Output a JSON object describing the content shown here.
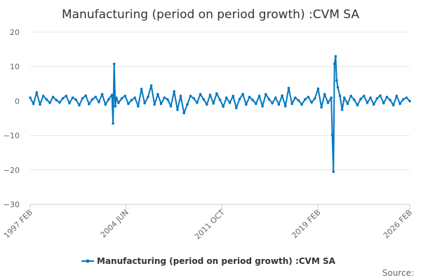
{
  "chart_data": {
    "type": "line",
    "title": "Manufacturing (period on period growth) :CVM SA",
    "xlabel": "",
    "ylabel": "",
    "ylim": [
      -30,
      20
    ],
    "yticks": [
      "20",
      "10",
      "0",
      "−10",
      "−20",
      "−30"
    ],
    "ytick_values": [
      20,
      10,
      0,
      -10,
      -20,
      -30
    ],
    "xlim": [
      "1997 FEB",
      "2026 FEB"
    ],
    "xticks": [
      "1997 FEB",
      "2004 JUN",
      "2011 OCT",
      "2019 FEB",
      "2026 FEB"
    ],
    "grid": true,
    "legend_position": "bottom-center",
    "credit": "Source:",
    "color": "#0077c0",
    "series": [
      {
        "name": "Manufacturing (period on period growth) :CVM SA",
        "x": [
          "1997 FEB",
          "1997 MAY",
          "1997 AUG",
          "1997 NOV",
          "1998 FEB",
          "1998 MAY",
          "1998 AUG",
          "1998 NOV",
          "1999 FEB",
          "1999 MAY",
          "1999 AUG",
          "1999 NOV",
          "2000 FEB",
          "2000 MAY",
          "2000 AUG",
          "2000 NOV",
          "2001 FEB",
          "2001 MAY",
          "2001 AUG",
          "2001 NOV",
          "2002 FEB",
          "2002 MAY",
          "2002 AUG",
          "2002 NOV",
          "2003 FEB",
          "2003 MAY",
          "2003 JUN",
          "2003 JUL",
          "2003 AUG",
          "2003 SEP",
          "2003 NOV",
          "2004 FEB",
          "2004 MAY",
          "2004 AUG",
          "2004 NOV",
          "2005 FEB",
          "2005 MAY",
          "2005 AUG",
          "2005 NOV",
          "2006 FEB",
          "2006 MAY",
          "2006 AUG",
          "2006 NOV",
          "2007 FEB",
          "2007 MAY",
          "2007 AUG",
          "2007 NOV",
          "2008 FEB",
          "2008 MAY",
          "2008 AUG",
          "2008 NOV",
          "2009 FEB",
          "2009 MAY",
          "2009 AUG",
          "2009 NOV",
          "2010 FEB",
          "2010 MAY",
          "2010 AUG",
          "2010 NOV",
          "2011 FEB",
          "2011 MAY",
          "2011 AUG",
          "2011 NOV",
          "2012 FEB",
          "2012 MAY",
          "2012 AUG",
          "2012 NOV",
          "2013 FEB",
          "2013 MAY",
          "2013 AUG",
          "2013 NOV",
          "2014 FEB",
          "2014 MAY",
          "2014 AUG",
          "2014 NOV",
          "2015 FEB",
          "2015 MAY",
          "2015 AUG",
          "2015 NOV",
          "2016 FEB",
          "2016 MAY",
          "2016 AUG",
          "2016 NOV",
          "2017 FEB",
          "2017 MAY",
          "2017 AUG",
          "2017 NOV",
          "2018 FEB",
          "2018 MAY",
          "2018 AUG",
          "2018 NOV",
          "2019 FEB",
          "2019 MAY",
          "2019 AUG",
          "2019 NOV",
          "2020 FEB",
          "2020 MAR",
          "2020 APR",
          "2020 MAY",
          "2020 JUN",
          "2020 JUL",
          "2020 AUG",
          "2020 OCT",
          "2020 DEC",
          "2021 FEB",
          "2021 MAY",
          "2021 AUG",
          "2021 NOV",
          "2022 FEB",
          "2022 MAY",
          "2022 AUG",
          "2022 NOV",
          "2023 FEB",
          "2023 MAY",
          "2023 AUG",
          "2023 NOV",
          "2024 FEB",
          "2024 MAY",
          "2024 AUG",
          "2024 NOV",
          "2025 FEB",
          "2025 MAY",
          "2025 AUG",
          "2025 NOV",
          "2026 FEB"
        ],
        "values": [
          1.0,
          -0.8,
          2.5,
          -1.0,
          1.5,
          0.5,
          -0.5,
          1.2,
          0.3,
          -0.4,
          0.8,
          1.5,
          -0.6,
          1.0,
          0.4,
          -1.2,
          0.8,
          1.6,
          -0.9,
          0.5,
          1.2,
          -0.3,
          2.0,
          -1.0,
          0.5,
          1.8,
          -6.5,
          10.8,
          -1.5,
          1.0,
          -0.5,
          0.8,
          1.5,
          -0.8,
          0.3,
          1.0,
          -1.5,
          3.5,
          -0.6,
          1.2,
          4.5,
          -1.0,
          2.0,
          -0.8,
          1.0,
          0.5,
          -1.5,
          2.8,
          -2.5,
          1.5,
          -3.5,
          -1.0,
          1.5,
          0.8,
          -0.5,
          2.0,
          0.5,
          -1.0,
          1.8,
          -0.7,
          2.2,
          0.4,
          -1.6,
          1.0,
          -0.5,
          1.5,
          -2.0,
          0.6,
          2.0,
          -1.0,
          1.2,
          0.3,
          -0.8,
          1.5,
          -1.5,
          2.0,
          0.5,
          -0.6,
          1.0,
          -1.0,
          1.6,
          -1.5,
          3.8,
          -0.8,
          1.0,
          0.2,
          -1.0,
          0.5,
          1.2,
          -0.4,
          0.8,
          3.6,
          -1.8,
          2.0,
          -0.5,
          1.0,
          -9.8,
          -20.5,
          10.8,
          13.0,
          6.0,
          4.0,
          1.5,
          -2.5,
          1.0,
          -0.8,
          1.5,
          0.4,
          -1.2,
          0.6,
          1.5,
          -0.5,
          1.0,
          -1.0,
          0.8,
          1.6,
          -0.6,
          1.2,
          0.3,
          -1.2,
          1.5,
          -0.8,
          0.5,
          1.0,
          0.0
        ]
      }
    ]
  }
}
